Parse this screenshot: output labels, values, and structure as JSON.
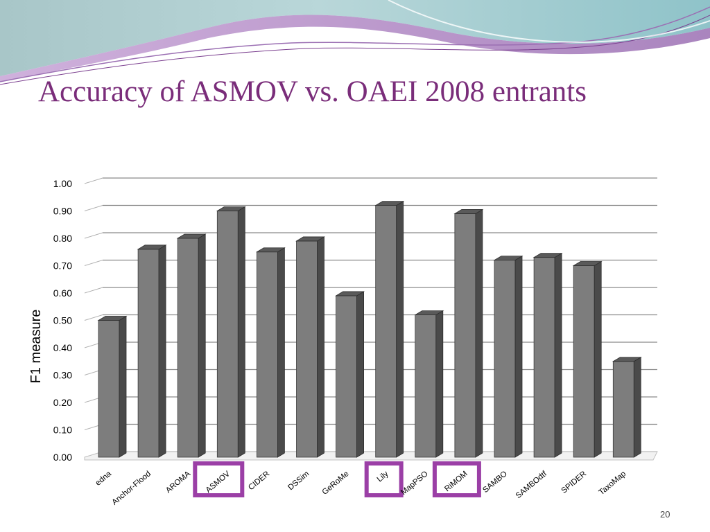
{
  "slide": {
    "title": "Accuracy of ASMOV vs. OAEI 2008 entrants",
    "page_number": "20"
  },
  "colors": {
    "title": "#7a2d7a",
    "bar_front": "#7d7d7d",
    "bar_side": "#4a4a4a",
    "bar_top": "#5a5a5a",
    "highlight_box": "#9b3fa6"
  },
  "chart_data": {
    "type": "bar",
    "title": "",
    "xlabel": "",
    "ylabel": "F1 measure",
    "ylim": [
      0,
      1.0
    ],
    "yticks": [
      "0.00",
      "0.10",
      "0.20",
      "0.30",
      "0.40",
      "0.50",
      "0.60",
      "0.70",
      "0.80",
      "0.90",
      "1.00"
    ],
    "grid": true,
    "legend": "none",
    "categories": [
      "edna",
      "Anchor-Flood",
      "AROMA",
      "ASMOV",
      "CIDER",
      "DSSim",
      "GeRoMe",
      "Lily",
      "MapPSO",
      "RiMOM",
      "SAMBO",
      "SAMBOdtf",
      "SPIDER",
      "TaxoMap"
    ],
    "values": [
      0.5,
      0.76,
      0.8,
      0.9,
      0.75,
      0.79,
      0.59,
      0.92,
      0.52,
      0.89,
      0.72,
      0.73,
      0.7,
      0.35
    ],
    "highlighted": [
      "ASMOV",
      "Lily",
      "RiMOM"
    ]
  }
}
